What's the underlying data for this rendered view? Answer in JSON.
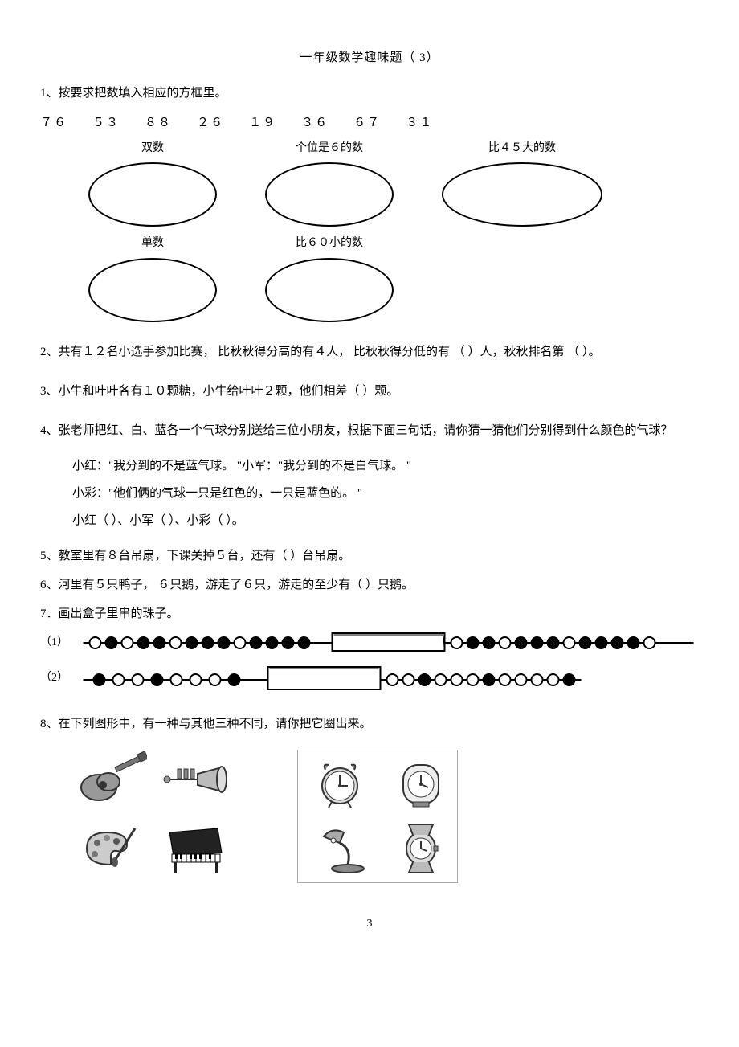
{
  "title": "一年级数学趣味题（   3）",
  "q1": {
    "prompt": "1、按要求把数填入相应的方框里。",
    "numbers": "７６    ５３    ８８   ２６   １９    ３６    ６７   ３１",
    "labels": {
      "even": "双数",
      "ones6": "个位是６的数",
      "gt45": "比４５大的数",
      "odd": "单数",
      "lt60": "比６０小的数"
    }
  },
  "q2": "2、共有１２名小选手参加比赛，   比秋秋得分高的有４人，   比秋秋得分低的有 （          ）人，秋秋排名第 （            ）。",
  "q3": "3、小牛和叶叶各有１０颗糖，小牛给叶叶２颗，他们相差（               ）颗。",
  "q4": {
    "prompt": "4、张老师把红、白、蓝各一个气球分别送给三位小朋友，根据下面三句话，请你猜一猜他们分别得到什么颜色的气球？",
    "line1": "小红：\"我分到的不是蓝气球。  \"小军：\"我分到的不是白气球。   \"",
    "line2": "小彩：\"他们俩的气球一只是红色的，一只是蓝色的。    \"",
    "line3": "小红（               ）、小军（               ）、小彩（               ）。"
  },
  "q5": "5、教室里有８台吊扇，下课关掉５台，还有（               ）台吊扇。",
  "q6": "6、河里有５只鸭子， ６只鹅，游走了６只，游走的至少有（               ）只鹅。",
  "q7": {
    "prompt": "7．画出盒子里串的珠子。",
    "row1": "（1）",
    "row2": "（2）"
  },
  "q8": "8、在下列图形中，有一种与其他三种不同，请你把它圈出来。",
  "pagenum": "3",
  "colors": {
    "text": "#000000",
    "bg": "#ffffff",
    "stroke": "#000000",
    "fill_dark": "#333333",
    "fill_gray": "#888888",
    "fill_light": "#dddddd"
  },
  "beads": {
    "row1_left": [
      0,
      1,
      0,
      1,
      1,
      0,
      1,
      1,
      1,
      0,
      1,
      1,
      1,
      1
    ],
    "row1_right": [
      0,
      1,
      1,
      0,
      1,
      1,
      1,
      0,
      1,
      1,
      1,
      1,
      0
    ],
    "row2_left": [
      1,
      0,
      0,
      1,
      0,
      0,
      0,
      1
    ],
    "row2_right": [
      0,
      0,
      1,
      0,
      0,
      0,
      1,
      0,
      0,
      0,
      0,
      1
    ]
  }
}
